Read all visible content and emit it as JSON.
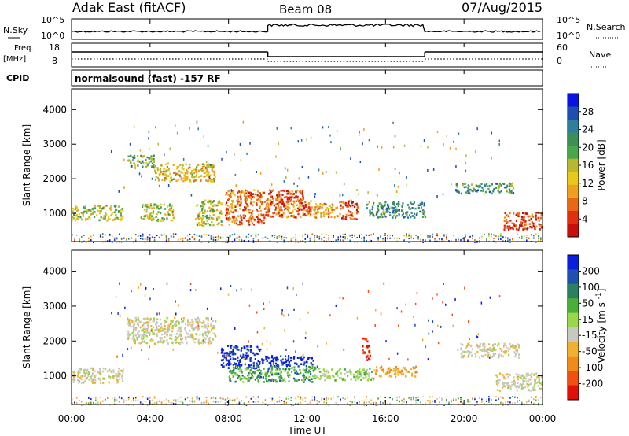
{
  "header": {
    "station": "Adak East (fitACF)",
    "beam": "Beam 08",
    "date": "07/Aug/2015"
  },
  "noise_panel": {
    "left_label": "N.Sky",
    "left_ticks": [
      "10^5",
      "10^0"
    ],
    "right_label": "N.Search",
    "right_ticks": [
      "10^5",
      "10^0"
    ]
  },
  "freq_panel": {
    "left_label_1": "Freq.",
    "left_label_2": "[MHz]",
    "left_ticks": [
      "18",
      "8"
    ],
    "right_label": "Nave",
    "right_ticks": [
      "60",
      "0"
    ]
  },
  "cpid": {
    "label": "CPID",
    "text": "normalsound (fast) -157 RF"
  },
  "chart_data": [
    {
      "type": "heatmap",
      "name": "power",
      "ylabel": "Slant Range [km]",
      "xlabel": "Time UT",
      "x_ticks": [
        "00:00",
        "04:00",
        "08:00",
        "12:00",
        "16:00",
        "20:00",
        "00:00"
      ],
      "x_range_hours": [
        0,
        24
      ],
      "y_ticks": [
        1000,
        2000,
        3000,
        4000
      ],
      "ylim": [
        180,
        4600
      ],
      "colorbar": {
        "label": "Power [dB]",
        "ticks": [
          "4",
          "8",
          "12",
          "16",
          "20",
          "24",
          "28"
        ],
        "colors": [
          "#0a14e0",
          "#1e4fb0",
          "#2f7f9a",
          "#3d8f5a",
          "#4aa64a",
          "#b8b830",
          "#e8c818",
          "#f0a020",
          "#e86818",
          "#e03010",
          "#c81008"
        ]
      },
      "echo_regions": [
        {
          "t0": 0.0,
          "t1": 2.6,
          "r0": 820,
          "r1": 1250,
          "level": 5
        },
        {
          "t0": 2.8,
          "t1": 4.2,
          "r0": 2350,
          "r1": 2700,
          "level": 4
        },
        {
          "t0": 4.2,
          "t1": 7.3,
          "r0": 1950,
          "r1": 2450,
          "level": 6
        },
        {
          "t0": 3.5,
          "t1": 5.2,
          "r0": 800,
          "r1": 1300,
          "level": 5
        },
        {
          "t0": 6.3,
          "t1": 7.6,
          "r0": 650,
          "r1": 1400,
          "level": 5
        },
        {
          "t0": 7.8,
          "t1": 9.8,
          "r0": 700,
          "r1": 1700,
          "level": 8
        },
        {
          "t0": 9.8,
          "t1": 12.2,
          "r0": 900,
          "r1": 1450,
          "level": 8
        },
        {
          "t0": 10.0,
          "t1": 11.8,
          "r0": 1300,
          "r1": 1700,
          "level": 9
        },
        {
          "t0": 12.0,
          "t1": 13.6,
          "r0": 900,
          "r1": 1300,
          "level": 7
        },
        {
          "t0": 13.6,
          "t1": 14.6,
          "r0": 850,
          "r1": 1400,
          "level": 9
        },
        {
          "t0": 15.0,
          "t1": 18.0,
          "r0": 900,
          "r1": 1350,
          "level": 3
        },
        {
          "t0": 19.5,
          "t1": 22.5,
          "r0": 1600,
          "r1": 1900,
          "level": 3
        },
        {
          "t0": 22.0,
          "t1": 24.0,
          "r0": 550,
          "r1": 1050,
          "level": 9
        }
      ]
    },
    {
      "type": "heatmap",
      "name": "velocity",
      "ylabel": "Slant Range [km]",
      "xlabel": "Time UT",
      "x_ticks": [
        "00:00",
        "04:00",
        "08:00",
        "12:00",
        "16:00",
        "20:00",
        "00:00"
      ],
      "x_range_hours": [
        0,
        24
      ],
      "y_ticks": [
        1000,
        2000,
        3000,
        4000
      ],
      "ylim": [
        180,
        4600
      ],
      "colorbar": {
        "label": "Velocity [m s^-1]",
        "ticks": [
          "200",
          "100",
          "50",
          "15",
          "-15",
          "-50",
          "-100",
          "-200"
        ],
        "colors": [
          "#0a1ee0",
          "#1e50b0",
          "#2a8060",
          "#48b038",
          "#9ad84a",
          "#c8c8c0",
          "#f0b030",
          "#f08a18",
          "#f05010",
          "#e01008"
        ]
      },
      "echo_regions": [
        {
          "t0": 0.0,
          "t1": 2.6,
          "r0": 820,
          "r1": 1250,
          "class": "ground"
        },
        {
          "t0": 2.8,
          "t1": 7.3,
          "r0": 1950,
          "r1": 2700,
          "class": "ground"
        },
        {
          "t0": 7.6,
          "t1": 9.6,
          "r0": 1250,
          "r1": 1900,
          "class": "positive_high"
        },
        {
          "t0": 9.6,
          "t1": 12.3,
          "r0": 1300,
          "r1": 1600,
          "class": "positive_high"
        },
        {
          "t0": 8.0,
          "t1": 12.5,
          "r0": 850,
          "r1": 1300,
          "class": "positive_mid"
        },
        {
          "t0": 12.5,
          "t1": 15.4,
          "r0": 900,
          "r1": 1250,
          "class": "positive_low"
        },
        {
          "t0": 15.4,
          "t1": 17.6,
          "r0": 1000,
          "r1": 1300,
          "class": "negative_mid"
        },
        {
          "t0": 14.8,
          "t1": 15.2,
          "r0": 1450,
          "r1": 2100,
          "class": "negative_high"
        },
        {
          "t0": 19.8,
          "t1": 22.8,
          "r0": 1550,
          "r1": 1950,
          "class": "ground"
        },
        {
          "t0": 21.6,
          "t1": 24.0,
          "r0": 600,
          "r1": 1100,
          "class": "ground"
        }
      ]
    }
  ],
  "mode_segments_hours": [
    [
      0,
      10
    ],
    [
      10,
      18
    ],
    [
      18,
      24
    ]
  ]
}
